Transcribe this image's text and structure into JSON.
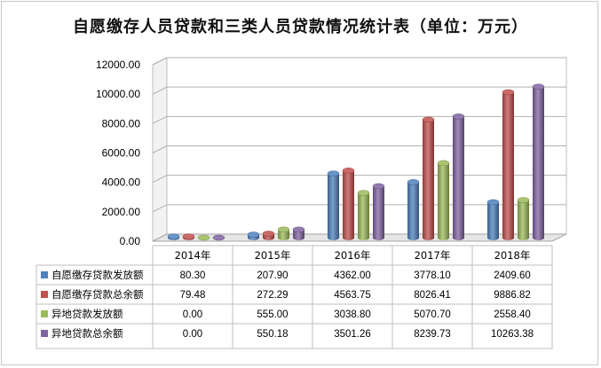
{
  "chart_data": {
    "type": "bar",
    "title": "自愿缴存人员贷款和三类人员贷款情况统计表（单位：万元）",
    "categories": [
      "2014年",
      "2015年",
      "2016年",
      "2017年",
      "2018年"
    ],
    "ylim": [
      0,
      12000
    ],
    "yticks": [
      "0.00",
      "2000.00",
      "4000.00",
      "6000.00",
      "8000.00",
      "10000.00",
      "12000.00"
    ],
    "grid": true,
    "data_table": true,
    "series": [
      {
        "name": "自愿缴存贷款发放额",
        "color": "#4f81bd",
        "values": [
          80.3,
          207.9,
          4362.0,
          3778.1,
          2409.6
        ],
        "labels": [
          "80.30",
          "207.90",
          "4362.00",
          "3778.10",
          "2409.60"
        ]
      },
      {
        "name": "自愿缴存贷款总余额",
        "color": "#c0504d",
        "values": [
          79.48,
          272.29,
          4563.75,
          8026.41,
          9886.82
        ],
        "labels": [
          "79.48",
          "272.29",
          "4563.75",
          "8026.41",
          "9886.82"
        ]
      },
      {
        "name": "异地贷款发放额",
        "color": "#9bbb59",
        "values": [
          0.0,
          555.0,
          3038.8,
          5070.7,
          2558.4
        ],
        "labels": [
          "0.00",
          "555.00",
          "3038.80",
          "5070.70",
          "2558.40"
        ]
      },
      {
        "name": "异地贷款总余额",
        "color": "#8064a2",
        "values": [
          0.0,
          550.18,
          3501.26,
          8239.73,
          10263.38
        ],
        "labels": [
          "0.00",
          "550.18",
          "3501.26",
          "8239.73",
          "10263.38"
        ]
      }
    ]
  }
}
